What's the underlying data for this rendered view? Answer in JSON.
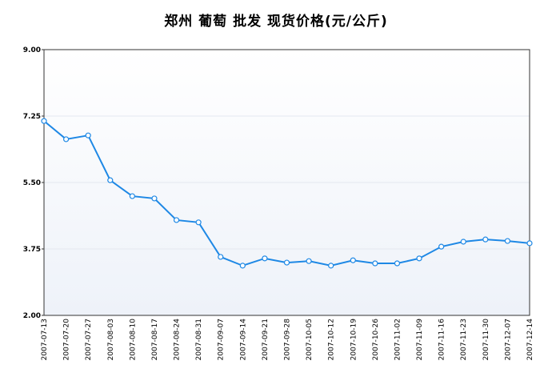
{
  "chart_data": {
    "type": "line",
    "title": "郑州 葡萄 批发 现货价格(元/公斤)",
    "categories": [
      "2007-07-13",
      "2007-07-20",
      "2007-07-27",
      "2007-08-03",
      "2007-08-10",
      "2007-08-17",
      "2007-08-24",
      "2007-08-31",
      "2007-09-07",
      "2007-09-14",
      "2007-09-21",
      "2007-09-28",
      "2007-10-05",
      "2007-10-12",
      "2007-10-19",
      "2007-10-26",
      "2007-11-02",
      "2007-11-09",
      "2007-11-16",
      "2007-11-23",
      "2007-11-30",
      "2007-12-07",
      "2007-12-14"
    ],
    "values": [
      7.12,
      6.64,
      6.74,
      5.56,
      5.14,
      5.08,
      4.51,
      4.45,
      3.54,
      3.31,
      3.5,
      3.39,
      3.43,
      3.31,
      3.45,
      3.37,
      3.37,
      3.5,
      3.81,
      3.94,
      4.0,
      3.96,
      3.9
    ],
    "color": "#1e88e5",
    "ylim": [
      2,
      9
    ],
    "yticks": [
      {
        "value": 2,
        "label": "2.00"
      },
      {
        "value": 3.75,
        "label": "3.75"
      },
      {
        "value": 5.5,
        "label": "5.50"
      },
      {
        "value": 7.25,
        "label": "7.25"
      },
      {
        "value": 9,
        "label": "9.00"
      }
    ],
    "grid": true
  }
}
